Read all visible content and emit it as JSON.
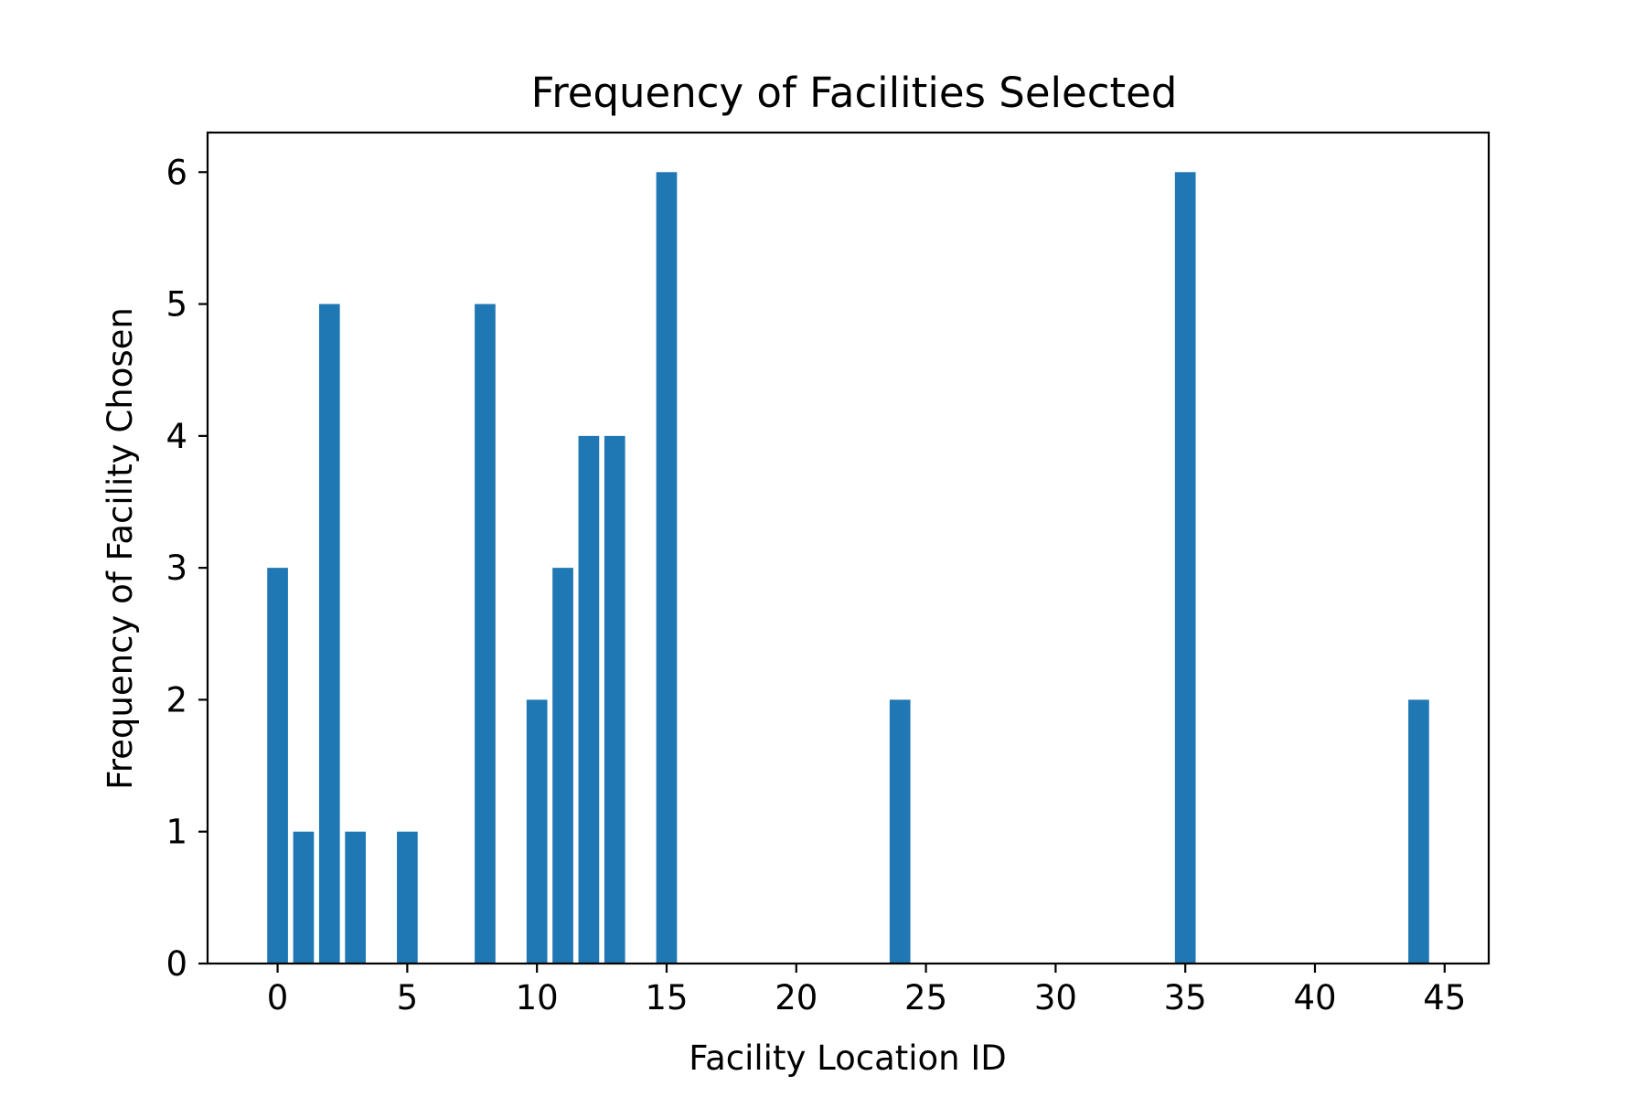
{
  "chart_data": {
    "type": "bar",
    "title": "Frequency of Facilities Selected",
    "xlabel": "Facility Location ID",
    "ylabel": "Frequency of Facility Chosen",
    "x": [
      0,
      1,
      2,
      3,
      5,
      8,
      10,
      11,
      12,
      13,
      15,
      24,
      35,
      44
    ],
    "values": [
      3,
      1,
      5,
      1,
      1,
      5,
      2,
      3,
      4,
      4,
      6,
      2,
      6,
      2
    ],
    "xlim": [
      -2.7,
      46.7
    ],
    "ylim": [
      0,
      6.3
    ],
    "xticks": [
      0,
      5,
      10,
      15,
      20,
      25,
      30,
      35,
      40,
      45
    ],
    "yticks": [
      0,
      1,
      2,
      3,
      4,
      5,
      6
    ],
    "bar_width": 0.8,
    "bar_color": "#1f77b4",
    "grid": false,
    "legend": "none"
  }
}
